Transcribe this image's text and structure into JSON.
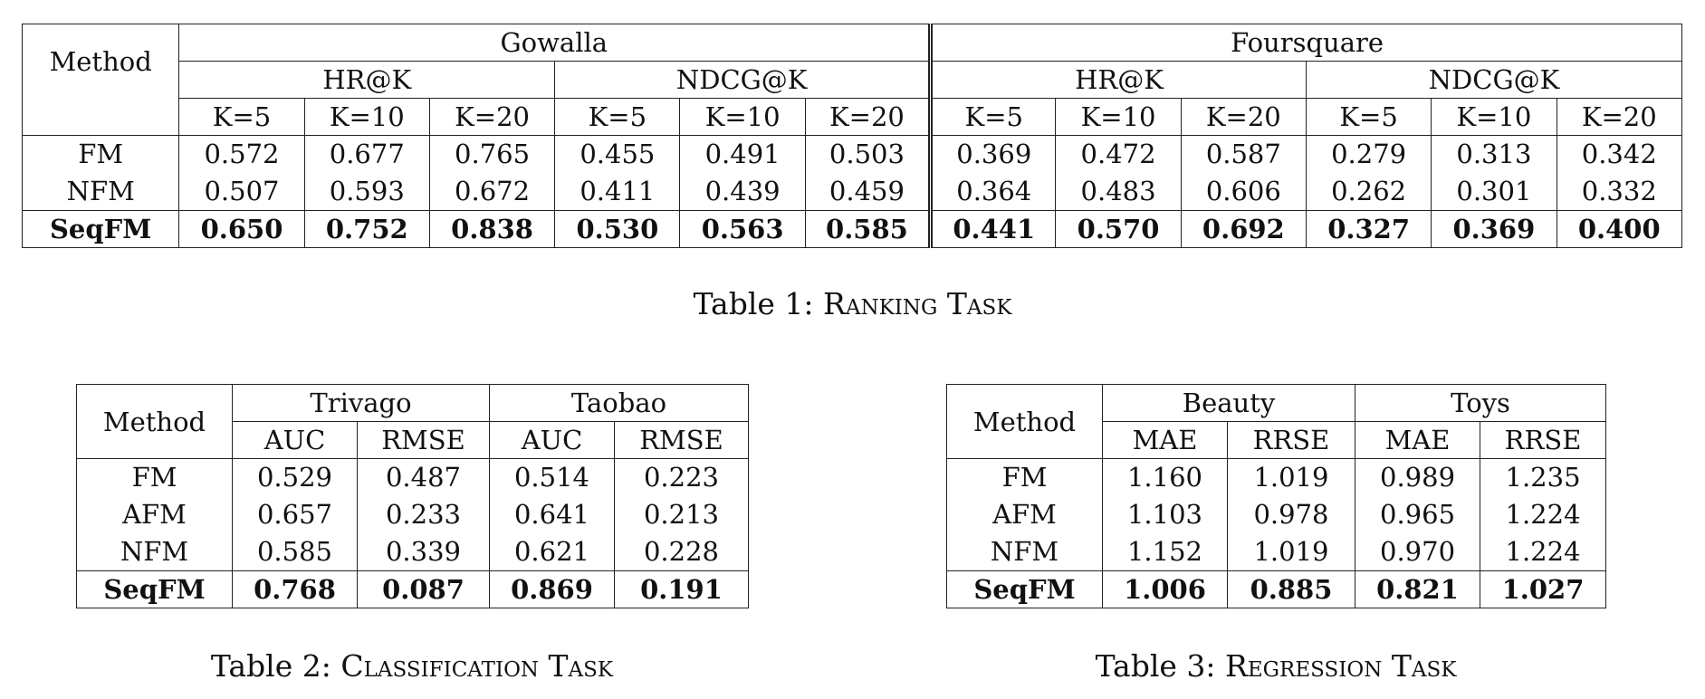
{
  "table1": {
    "caption_label": "Table 1:",
    "caption_title": "Ranking Task",
    "method_header": "Method",
    "datasets": [
      "Gowalla",
      "Foursquare"
    ],
    "metrics": [
      "HR@K",
      "NDCG@K",
      "HR@K",
      "NDCG@K"
    ],
    "ks": [
      "K=5",
      "K=10",
      "K=20",
      "K=5",
      "K=10",
      "K=20",
      "K=5",
      "K=10",
      "K=20",
      "K=5",
      "K=10",
      "K=20"
    ],
    "rows": [
      {
        "method": "FM",
        "values": [
          "0.572",
          "0.677",
          "0.765",
          "0.455",
          "0.491",
          "0.503",
          "0.369",
          "0.472",
          "0.587",
          "0.279",
          "0.313",
          "0.342"
        ]
      },
      {
        "method": "NFM",
        "values": [
          "0.507",
          "0.593",
          "0.672",
          "0.411",
          "0.439",
          "0.459",
          "0.364",
          "0.483",
          "0.606",
          "0.262",
          "0.301",
          "0.332"
        ]
      },
      {
        "method": "SeqFM",
        "values": [
          "0.650",
          "0.752",
          "0.838",
          "0.530",
          "0.563",
          "0.585",
          "0.441",
          "0.570",
          "0.692",
          "0.327",
          "0.369",
          "0.400"
        ]
      }
    ]
  },
  "table2": {
    "caption_label": "Table 2:",
    "caption_title": "Classification Task",
    "method_header": "Method",
    "datasets": [
      "Trivago",
      "Taobao"
    ],
    "metrics": [
      "AUC",
      "RMSE",
      "AUC",
      "RMSE"
    ],
    "rows": [
      {
        "method": "FM",
        "values": [
          "0.529",
          "0.487",
          "0.514",
          "0.223"
        ]
      },
      {
        "method": "AFM",
        "values": [
          "0.657",
          "0.233",
          "0.641",
          "0.213"
        ]
      },
      {
        "method": "NFM",
        "values": [
          "0.585",
          "0.339",
          "0.621",
          "0.228"
        ]
      },
      {
        "method": "SeqFM",
        "values": [
          "0.768",
          "0.087",
          "0.869",
          "0.191"
        ]
      }
    ]
  },
  "table3": {
    "caption_label": "Table 3:",
    "caption_title": "Regression Task",
    "method_header": "Method",
    "datasets": [
      "Beauty",
      "Toys"
    ],
    "metrics": [
      "MAE",
      "RRSE",
      "MAE",
      "RRSE"
    ],
    "rows": [
      {
        "method": "FM",
        "values": [
          "1.160",
          "1.019",
          "0.989",
          "1.235"
        ]
      },
      {
        "method": "AFM",
        "values": [
          "1.103",
          "0.978",
          "0.965",
          "1.224"
        ]
      },
      {
        "method": "NFM",
        "values": [
          "1.152",
          "1.019",
          "0.970",
          "1.224"
        ]
      },
      {
        "method": "SeqFM",
        "values": [
          "1.006",
          "0.885",
          "0.821",
          "1.027"
        ]
      }
    ]
  }
}
